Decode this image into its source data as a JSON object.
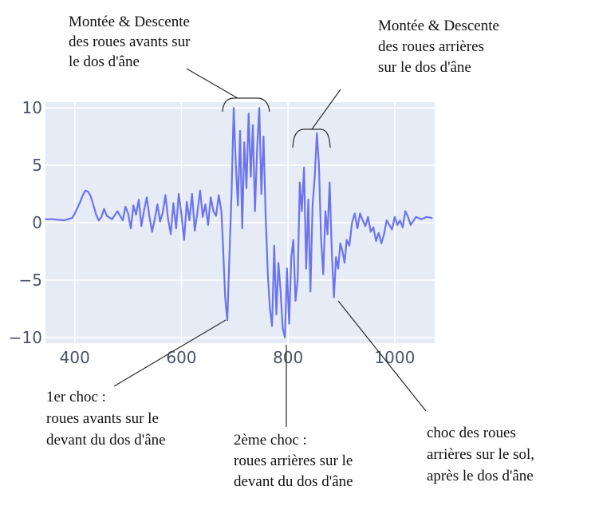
{
  "chart_data": {
    "type": "line",
    "title": "",
    "xlabel": "",
    "ylabel": "",
    "xlim": [
      345,
      1075
    ],
    "ylim": [
      -10.5,
      10.5
    ],
    "x_ticks": [
      400,
      600,
      800,
      1000
    ],
    "y_ticks": [
      10,
      5,
      0,
      -5,
      -10
    ],
    "x_tick_labels": [
      "400",
      "600",
      "800",
      "1000"
    ],
    "y_tick_labels": [
      "10",
      "5",
      "0",
      "−5",
      "−10"
    ],
    "grid": true,
    "colors": {
      "plot_bg": "#e6ecf6",
      "grid": "#ffffff",
      "line": "#6c73f0",
      "annotation": "#111111"
    },
    "series": [
      {
        "x": [
          345,
          360,
          380,
          395,
          400,
          410,
          415,
          420,
          425,
          430,
          435,
          440,
          445,
          450,
          455,
          460,
          470,
          480,
          490,
          495,
          500,
          505,
          510,
          515,
          520,
          525,
          530,
          535,
          540,
          545,
          550,
          555,
          560,
          565,
          570,
          575,
          580,
          585,
          590,
          595,
          600,
          605,
          610,
          615,
          620,
          625,
          630,
          635,
          640,
          645,
          650,
          655,
          660,
          665,
          670,
          675,
          678,
          682,
          686,
          690,
          694,
          698,
          702,
          706,
          710,
          714,
          718,
          722,
          726,
          730,
          734,
          738,
          742,
          746,
          750,
          754,
          758,
          762,
          766,
          770,
          774,
          778,
          782,
          786,
          790,
          794,
          798,
          802,
          806,
          810,
          814,
          818,
          822,
          826,
          830,
          834,
          838,
          842,
          846,
          850,
          854,
          858,
          862,
          866,
          870,
          874,
          878,
          882,
          886,
          890,
          894,
          898,
          902,
          906,
          910,
          915,
          920,
          925,
          930,
          935,
          940,
          945,
          950,
          955,
          960,
          965,
          970,
          975,
          980,
          985,
          990,
          995,
          1000,
          1005,
          1010,
          1015,
          1020,
          1025,
          1030,
          1040,
          1050,
          1060,
          1070
        ],
        "y": [
          0.3,
          0.3,
          0.2,
          0.4,
          0.8,
          1.8,
          2.4,
          2.8,
          2.7,
          2.3,
          1.5,
          0.7,
          0.2,
          0.5,
          1.2,
          0.6,
          0.3,
          1.0,
          0.2,
          1.4,
          0.8,
          -0.5,
          1.5,
          0.7,
          2.0,
          -0.3,
          1.1,
          2.2,
          0.5,
          -0.8,
          0.3,
          1.6,
          0.1,
          0.9,
          2.4,
          0.3,
          -1.0,
          1.7,
          -0.5,
          2.5,
          0.7,
          -1.5,
          1.8,
          0.2,
          2.5,
          -0.7,
          0.9,
          2.8,
          0.5,
          1.6,
          -0.2,
          2.2,
          1.0,
          0.6,
          2.4,
          1.0,
          -2.0,
          -6.5,
          -8.5,
          -3.0,
          2.5,
          10.0,
          5.0,
          1.5,
          8.0,
          -0.5,
          7.0,
          3.0,
          9.5,
          4.0,
          8.5,
          1.0,
          6.5,
          10.0,
          2.5,
          7.5,
          0.5,
          -4.5,
          -7.5,
          -9.0,
          -2.0,
          -8.0,
          -3.5,
          -6.0,
          -9.2,
          -10.0,
          -4.0,
          -8.8,
          -3.0,
          -1.5,
          -6.8,
          -5.0,
          3.5,
          1.0,
          4.8,
          -4.0,
          2.0,
          -6.0,
          1.5,
          4.0,
          7.8,
          5.0,
          -1.5,
          -4.5,
          1.0,
          -1.0,
          3.5,
          -2.5,
          -6.5,
          -3.0,
          -4.0,
          -1.8,
          -2.5,
          -3.5,
          -1.5,
          -2.0,
          0.0,
          0.8,
          -0.5,
          0.8,
          0.2,
          -0.3,
          0.5,
          -0.8,
          -0.4,
          -1.6,
          -0.9,
          -1.8,
          -1.0,
          0.2,
          -0.2,
          -0.6,
          0.5,
          -0.2,
          0.2,
          -0.4,
          1.0,
          0.5,
          -0.2,
          0.5,
          0.3,
          0.5,
          0.4
        ]
      }
    ],
    "annotations": [
      {
        "id": "front-wheels-hump",
        "lines": [
          "Montée & Descente",
          "des roues avants sur",
          "le dos d'âne"
        ]
      },
      {
        "id": "rear-wheels-hump",
        "lines": [
          "Montée & Descente",
          "des roues arrières",
          "sur le dos d'âne"
        ]
      },
      {
        "id": "first-shock",
        "lines": [
          "1er choc :",
          "roues avants sur le",
          "devant du dos d'âne"
        ]
      },
      {
        "id": "second-shock",
        "lines": [
          "2ème choc :",
          "roues arrières sur le",
          "devant du dos d'âne"
        ]
      },
      {
        "id": "rear-ground-shock",
        "lines": [
          "choc des roues",
          "arrières sur le sol,",
          "après le dos d'âne"
        ]
      }
    ]
  }
}
